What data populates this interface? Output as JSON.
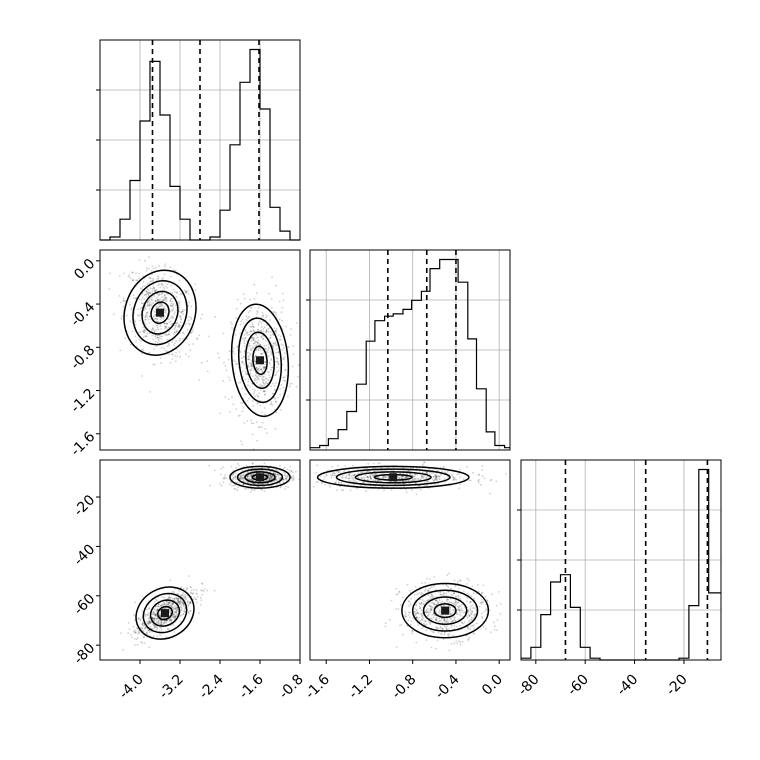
{
  "chart_data": {
    "type": "corner",
    "params": [
      {
        "range": [
          -4.8,
          -0.8
        ],
        "ticks": [
          "-4.0",
          "-3.2",
          "-2.4",
          "-1.6",
          "-0.8"
        ],
        "tick_values": [
          -4.0,
          -3.2,
          -2.4,
          -1.6,
          -0.8
        ],
        "quantiles": [
          -3.75,
          -2.8,
          -1.62
        ]
      },
      {
        "range": [
          -1.75,
          0.1
        ],
        "ticks": [
          "-1.6",
          "-1.2",
          "-0.8",
          "-0.4",
          "0.0"
        ],
        "tick_values": [
          -1.6,
          -1.2,
          -0.8,
          -0.4,
          0.0
        ],
        "quantiles": [
          -1.03,
          -0.67,
          -0.4
        ]
      },
      {
        "range": [
          -86,
          -5
        ],
        "ticks": [
          "-80",
          "-60",
          "-40",
          "-20"
        ],
        "tick_values": [
          -80,
          -60,
          -40,
          -20
        ],
        "quantiles": [
          -68,
          -35.5,
          -10.5
        ]
      }
    ],
    "histograms": [
      {
        "bins": [
          -4.8,
          -4.6,
          -4.4,
          -4.2,
          -4.0,
          -3.8,
          -3.6,
          -3.4,
          -3.2,
          -3.0,
          -2.8,
          -2.6,
          -2.4,
          -2.2,
          -2.0,
          -1.8,
          -1.6,
          -1.4,
          -1.2,
          -1.0,
          -0.8
        ],
        "counts": [
          0,
          1,
          7,
          20,
          40,
          60,
          42,
          18,
          7,
          0,
          0,
          1,
          10,
          32,
          53,
          64,
          44,
          11,
          3,
          0
        ]
      },
      {
        "bins": [
          -1.75,
          -1.66,
          -1.58,
          -1.49,
          -1.41,
          -1.32,
          -1.23,
          -1.15,
          -1.06,
          -0.98,
          -0.89,
          -0.81,
          -0.72,
          -0.64,
          -0.55,
          -0.47,
          -0.38,
          -0.29,
          -0.21,
          -0.12,
          -0.04,
          0.05,
          0.1
        ],
        "counts": [
          1,
          2,
          5,
          9,
          17,
          29,
          48,
          57,
          59,
          60,
          62,
          66,
          70,
          80,
          84,
          84,
          74,
          49,
          27,
          8,
          2,
          1
        ]
      },
      {
        "bins": [
          -86,
          -82,
          -78,
          -74,
          -70,
          -66,
          -62,
          -58,
          -54,
          -50,
          -46,
          -42,
          -38,
          -34,
          -30,
          -26,
          -22,
          -18,
          -14,
          -10,
          -6,
          -5
        ],
        "counts": [
          1,
          7,
          25,
          43,
          47,
          29,
          7,
          1,
          0,
          0,
          0,
          0,
          0,
          0,
          0,
          0,
          1,
          30,
          105,
          37,
          37
        ]
      }
    ],
    "clusters": [
      {
        "x": 0,
        "y": 1,
        "centers": [
          {
            "cx": -3.6,
            "cy": -0.48,
            "sx": 0.35,
            "sy": 0.2,
            "rho": -0.3
          },
          {
            "cx": -1.6,
            "cy": -0.92,
            "sx": 0.28,
            "sy": 0.26,
            "rho": 0.05
          }
        ]
      },
      {
        "x": 0,
        "y": 2,
        "centers": [
          {
            "cx": -1.6,
            "cy": -12,
            "sx": 0.3,
            "sy": 2.2,
            "rho": 0.0
          },
          {
            "cx": -3.5,
            "cy": -67,
            "sx": 0.3,
            "sy": 5.0,
            "rho": 0.75
          }
        ]
      },
      {
        "x": 1,
        "y": 2,
        "centers": [
          {
            "cx": -0.98,
            "cy": -12,
            "sx": 0.35,
            "sy": 2.2,
            "rho": 0.0
          },
          {
            "cx": -0.5,
            "cy": -66,
            "sx": 0.2,
            "sy": 5.5,
            "rho": 0.0
          }
        ]
      }
    ]
  }
}
